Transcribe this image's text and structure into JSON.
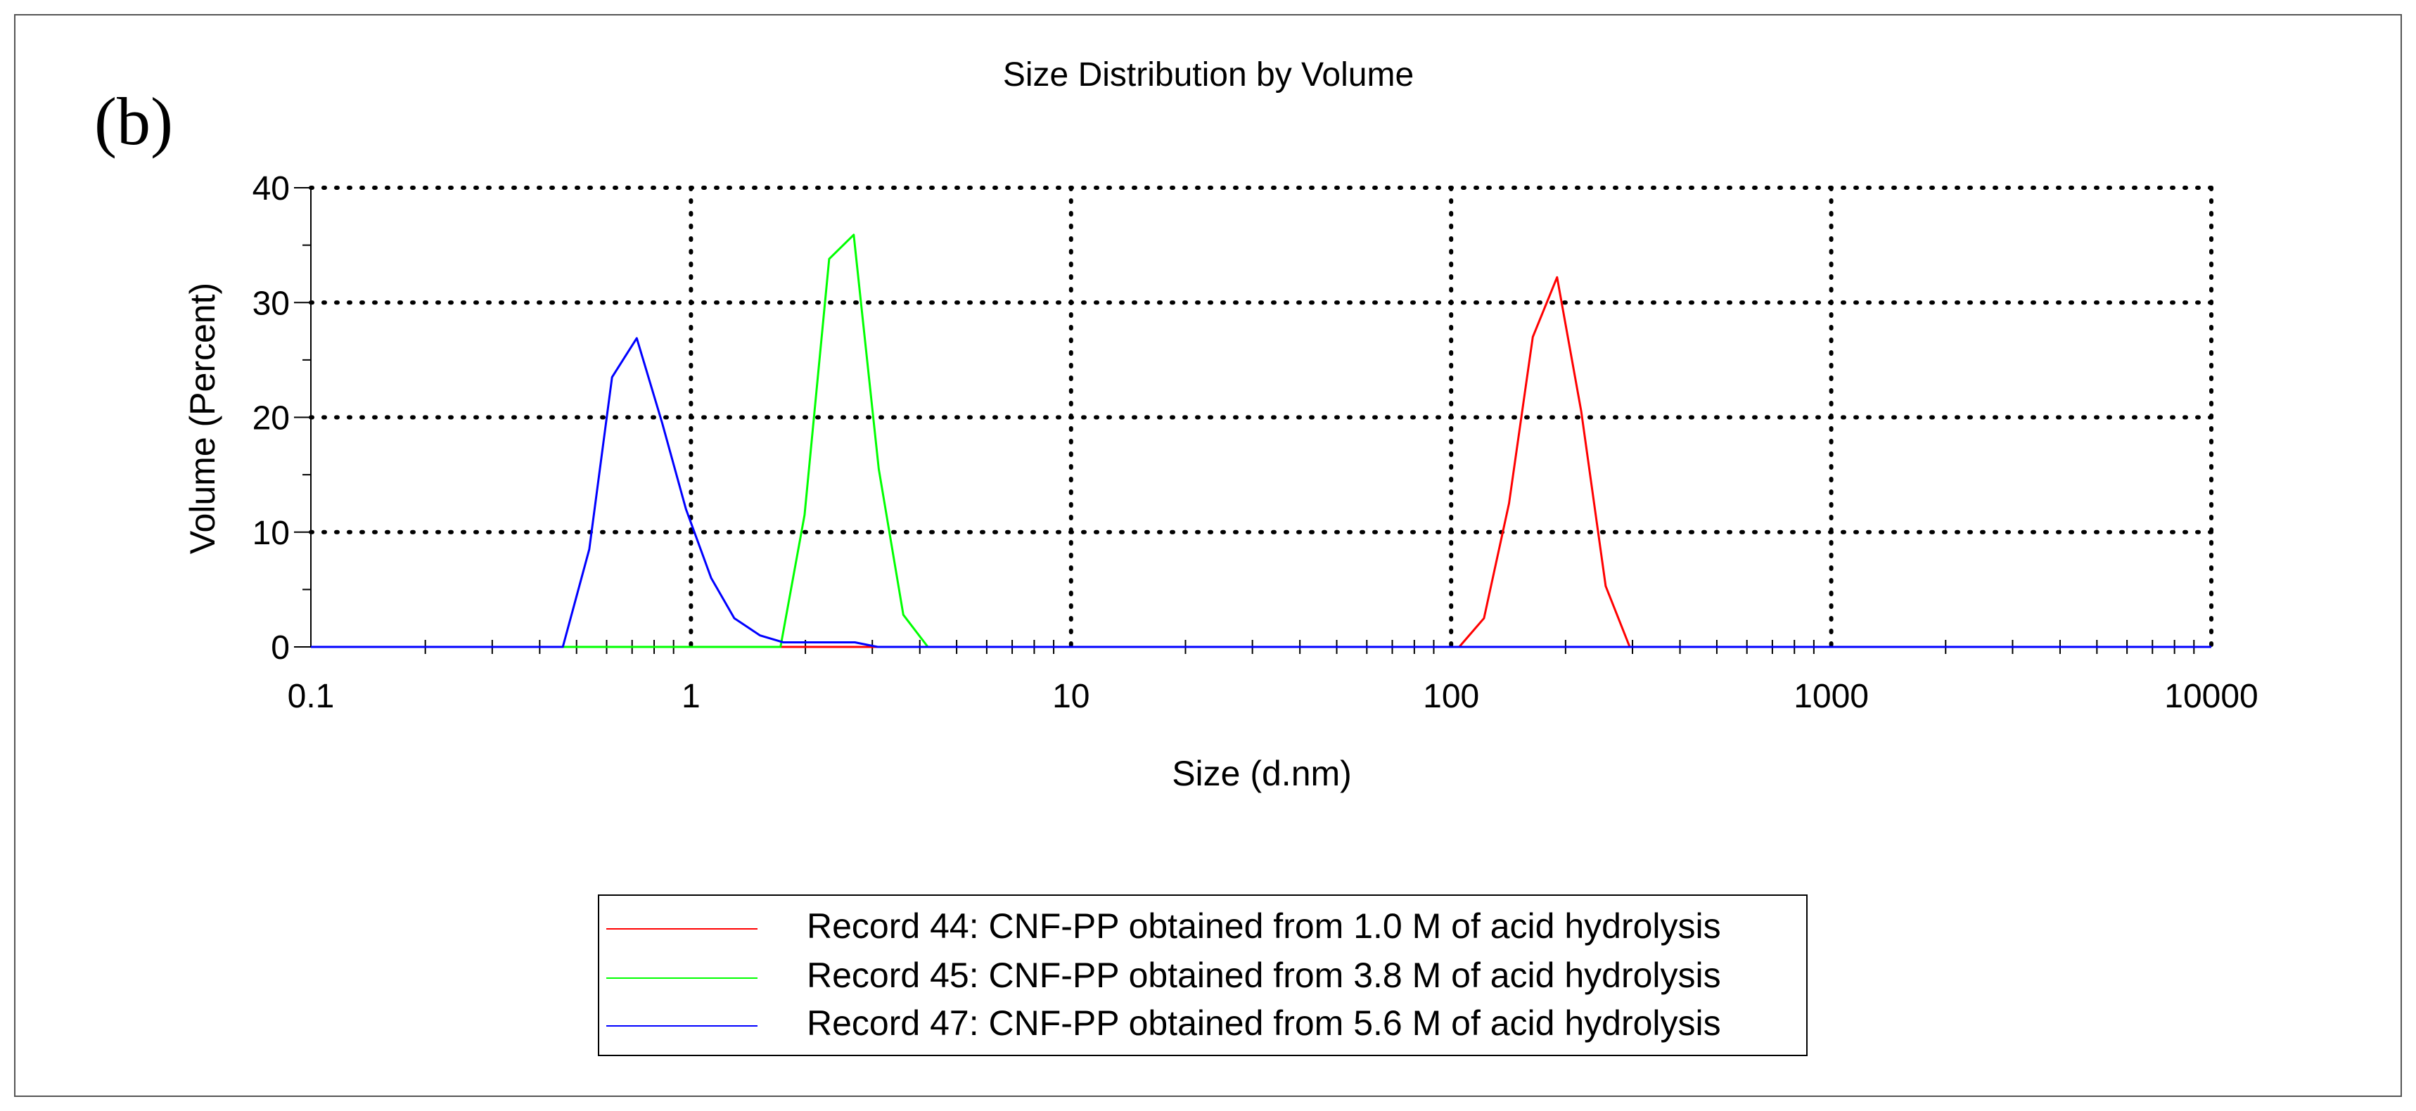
{
  "panel_label": "(b)",
  "chart_data": {
    "type": "line",
    "title": "Size Distribution by Volume",
    "xlabel": "Size (d.nm)",
    "ylabel": "Volume (Percent)",
    "xscale": "log",
    "xlim": [
      0.1,
      10000
    ],
    "ylim": [
      0,
      40
    ],
    "xticks": [
      {
        "value": 0.1,
        "label": "0.1"
      },
      {
        "value": 1,
        "label": "1"
      },
      {
        "value": 10,
        "label": "10"
      },
      {
        "value": 100,
        "label": "100"
      },
      {
        "value": 1000,
        "label": "1000"
      },
      {
        "value": 10000,
        "label": "10000"
      }
    ],
    "yticks": [
      {
        "value": 0,
        "label": "0"
      },
      {
        "value": 10,
        "label": "10"
      },
      {
        "value": 20,
        "label": "20"
      },
      {
        "value": 30,
        "label": "30"
      },
      {
        "value": 40,
        "label": "40"
      }
    ],
    "grid": true,
    "legend_position": "bottom",
    "series": [
      {
        "name": "Record 44: CNF-PP obtained from 1.0 M of acid hydrolysis",
        "color": "#ff0000",
        "x": [
          0.1,
          105,
          122,
          142,
          164,
          190,
          220,
          255,
          295,
          10000
        ],
        "y": [
          0,
          0,
          2.5,
          12.5,
          27,
          32.2,
          20.5,
          5.3,
          0,
          0
        ]
      },
      {
        "name": "Record 45: CNF-PP obtained from 3.8 M of acid hydrolysis",
        "color": "#00ff00",
        "x": [
          0.1,
          1.72,
          1.99,
          2.31,
          2.68,
          3.12,
          3.62,
          4.2,
          10000
        ],
        "y": [
          0,
          0,
          11.5,
          33.8,
          35.9,
          15.5,
          2.8,
          0,
          0
        ]
      },
      {
        "name": "Record 47: CNF-PP obtained from 5.6 M of acid hydrolysis",
        "color": "#0000ff",
        "x": [
          0.1,
          0.46,
          0.54,
          0.62,
          0.72,
          0.84,
          0.97,
          1.13,
          1.3,
          1.52,
          1.75,
          2.1,
          2.7,
          3.1,
          10000
        ],
        "y": [
          0,
          0,
          8.5,
          23.5,
          26.9,
          19.5,
          12,
          6,
          2.5,
          1,
          0.4,
          0.4,
          0.4,
          0,
          0
        ]
      }
    ]
  }
}
